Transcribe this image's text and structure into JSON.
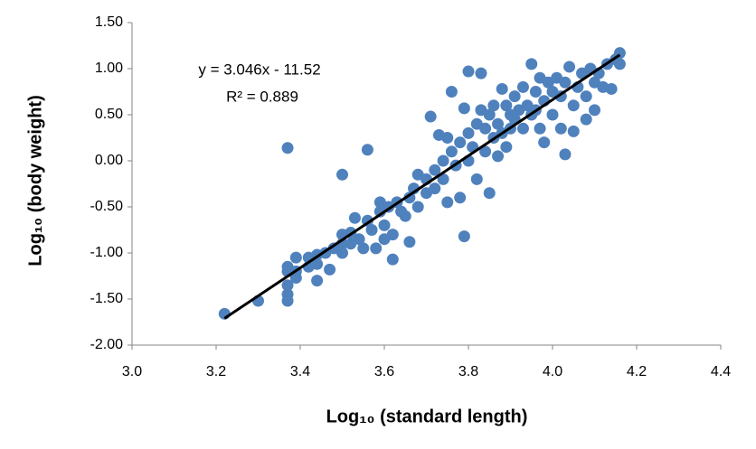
{
  "chart_data": {
    "type": "scatter",
    "xlabel": "Log₁₀ (standard length)",
    "ylabel": "Log₁₀ (body weight)",
    "annotations": [
      "y = 3.046x - 11.52",
      "R² = 0.889"
    ],
    "color": "#4f81bd",
    "xlim": [
      3.0,
      4.4
    ],
    "ylim": [
      -2.0,
      1.5
    ],
    "xticks": [
      {
        "value": 3.0,
        "label": "3.0"
      },
      3.2,
      3.4,
      3.6,
      3.8,
      {
        "value": 4.0,
        "label": "4.0"
      },
      4.2,
      4.4
    ],
    "yticks": [
      {
        "value": 1.5,
        "label": "1.50"
      },
      {
        "value": 1.0,
        "label": "1.00"
      },
      {
        "value": 0.5,
        "label": "0.50"
      },
      {
        "value": 0.0,
        "label": "0.00"
      },
      {
        "value": -0.5,
        "label": "-0.50"
      },
      {
        "value": -1.0,
        "label": "-1.00"
      },
      {
        "value": -1.5,
        "label": "-1.50"
      },
      {
        "value": -2.0,
        "label": "-2.00"
      }
    ],
    "x": [
      3.22,
      3.3,
      3.37,
      3.37,
      3.37,
      3.37,
      3.37,
      3.37,
      3.39,
      3.39,
      3.39,
      3.42,
      3.42,
      3.44,
      3.44,
      3.44,
      3.46,
      3.47,
      3.48,
      3.5,
      3.5,
      3.5,
      3.5,
      3.52,
      3.52,
      3.53,
      3.54,
      3.55,
      3.56,
      3.56,
      3.57,
      3.58,
      3.59,
      3.59,
      3.6,
      3.6,
      3.61,
      3.62,
      3.62,
      3.63,
      3.64,
      3.65,
      3.66,
      3.66,
      3.67,
      3.68,
      3.68,
      3.7,
      3.7,
      3.71,
      3.72,
      3.72,
      3.73,
      3.74,
      3.74,
      3.75,
      3.75,
      3.76,
      3.76,
      3.77,
      3.78,
      3.78,
      3.79,
      3.79,
      3.8,
      3.8,
      3.8,
      3.81,
      3.82,
      3.82,
      3.83,
      3.83,
      3.84,
      3.84,
      3.85,
      3.85,
      3.86,
      3.86,
      3.87,
      3.87,
      3.88,
      3.88,
      3.89,
      3.89,
      3.9,
      3.9,
      3.91,
      3.91,
      3.92,
      3.93,
      3.93,
      3.94,
      3.95,
      3.95,
      3.96,
      3.96,
      3.97,
      3.97,
      3.98,
      3.98,
      3.99,
      4.0,
      4.0,
      4.01,
      4.02,
      4.02,
      4.03,
      4.03,
      4.04,
      4.05,
      4.05,
      4.06,
      4.07,
      4.08,
      4.08,
      4.09,
      4.1,
      4.1,
      4.11,
      4.12,
      4.13,
      4.14,
      4.15,
      4.16,
      4.16
    ],
    "values": [
      -1.66,
      -1.52,
      0.14,
      -1.15,
      -1.2,
      -1.35,
      -1.45,
      -1.52,
      -1.05,
      -1.2,
      -1.27,
      -1.05,
      -1.15,
      -1.02,
      -1.12,
      -1.3,
      -1.0,
      -1.18,
      -0.95,
      -0.15,
      -0.8,
      -0.9,
      -1.0,
      -0.78,
      -0.9,
      -0.62,
      -0.85,
      -0.95,
      0.12,
      -0.65,
      -0.75,
      -0.95,
      -0.45,
      -0.55,
      -0.7,
      -0.85,
      -0.5,
      -1.07,
      -0.8,
      -0.45,
      -0.55,
      -0.6,
      -0.4,
      -0.88,
      -0.3,
      -0.15,
      -0.5,
      -0.2,
      -0.35,
      0.48,
      -0.1,
      -0.3,
      0.28,
      0.0,
      -0.2,
      -0.45,
      0.25,
      0.75,
      0.1,
      -0.05,
      0.2,
      -0.4,
      -0.82,
      0.57,
      0.3,
      0.0,
      0.97,
      0.15,
      -0.2,
      0.4,
      0.95,
      0.55,
      0.35,
      0.1,
      0.5,
      -0.35,
      0.25,
      0.6,
      0.05,
      0.4,
      0.78,
      0.3,
      0.6,
      0.15,
      0.5,
      0.35,
      0.7,
      0.45,
      0.55,
      0.8,
      0.35,
      0.6,
      1.05,
      0.5,
      0.75,
      0.55,
      0.9,
      0.35,
      0.65,
      0.2,
      0.85,
      0.75,
      0.5,
      0.9,
      0.7,
      0.35,
      0.07,
      0.85,
      1.02,
      0.6,
      0.32,
      0.8,
      0.95,
      0.7,
      0.45,
      1.0,
      0.85,
      0.55,
      0.95,
      0.8,
      1.05,
      0.78,
      1.1,
      1.17,
      1.05
    ],
    "trendline": {
      "color": "#000000",
      "x": [
        3.22,
        4.16
      ],
      "values": [
        -1.71,
        1.15
      ]
    }
  }
}
